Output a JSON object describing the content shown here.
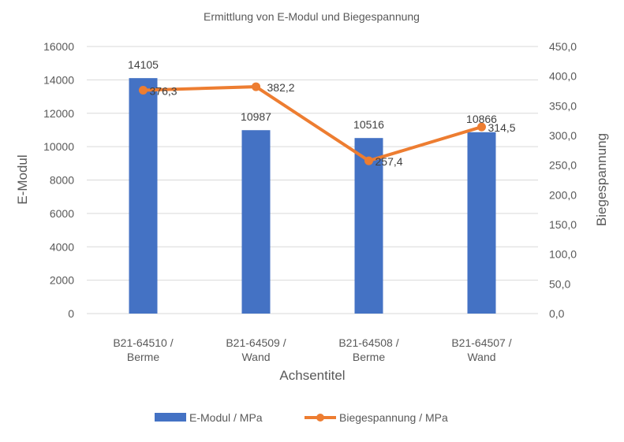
{
  "chart_data": {
    "type": "bar+line",
    "title": "Ermittlung von E-Modul und Biegespannung",
    "xlabel": "Achsentitel",
    "ylabel": "E-Modul",
    "y2label": "Biegespannung",
    "categories": [
      [
        "B21-64510 /",
        "Berme"
      ],
      [
        "B21-64509 /",
        "Wand"
      ],
      [
        "B21-64508 /",
        "Berme"
      ],
      [
        "B21-64507 /",
        "Wand"
      ]
    ],
    "ylim": [
      0,
      16000
    ],
    "yticks": [
      0,
      2000,
      4000,
      6000,
      8000,
      10000,
      12000,
      14000,
      16000
    ],
    "y2lim": [
      0,
      450
    ],
    "y2ticks": [
      "0,0",
      "50,0",
      "100,0",
      "150,0",
      "200,0",
      "250,0",
      "300,0",
      "350,0",
      "400,0",
      "450,0"
    ],
    "grid": true,
    "legend": "bottom",
    "series": [
      {
        "name": "E-Modul / MPa",
        "type": "bar",
        "axis": "left",
        "color": "#4472c4",
        "values": [
          14105,
          10987,
          10516,
          10866
        ],
        "labels": [
          "14105",
          "10987",
          "10516",
          "10866"
        ]
      },
      {
        "name": "Biegespannung / MPa",
        "type": "line",
        "axis": "right",
        "color": "#ed7d31",
        "values": [
          376.3,
          382.2,
          257.4,
          314.5
        ],
        "labels": [
          "376,3",
          "382,2",
          "257,4",
          "314,5"
        ]
      }
    ]
  }
}
